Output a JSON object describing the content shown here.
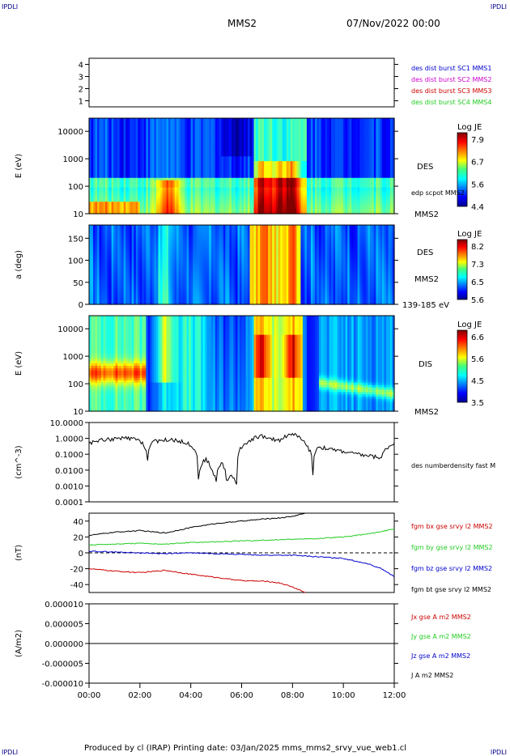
{
  "corner_label": "IPDLI",
  "header": {
    "spacecraft": "MMS2",
    "datetime": "07/Nov/2022 00:00"
  },
  "footer": "Produced by cl (IRAP)   Printing date: 03/Jan/2025   mms_mms2_srvy_vue_web1.cl",
  "colors": {
    "black": "#000000",
    "red": "#cc0000",
    "green": "#22cc22",
    "blue": "#0000cc",
    "magenta": "#cc00cc"
  },
  "chart_data": [
    {
      "type": "line",
      "panel": "burst availability",
      "ylim": [
        0.5,
        4.5
      ],
      "yticks": [
        "1",
        "2",
        "3",
        "4"
      ],
      "legend": [
        {
          "label": "des dist burst SC1 MMS1",
          "color": "#0000cc"
        },
        {
          "label": "des dist burst SC2 MMS2",
          "color": "#cc00cc"
        },
        {
          "label": "des dist burst SC3 MMS3",
          "color": "#cc0000"
        },
        {
          "label": "des dist burst SC4 MMS4",
          "color": "#22cc22"
        }
      ]
    },
    {
      "type": "heatmap",
      "panel": "DES energy spectrogram",
      "ylabel": "E (eV)",
      "yscale": "log",
      "ylim": [
        10,
        30000
      ],
      "yticks": [
        "10",
        "100",
        "1000",
        "10000"
      ],
      "labels": [
        "DES",
        "edp scpot MMS2",
        "MMS2"
      ],
      "colorbar": {
        "title": "Log JE",
        "ticks": [
          "7.9",
          "6.7",
          "5.6",
          "4.4"
        ],
        "range": [
          4.4,
          7.9
        ]
      }
    },
    {
      "type": "heatmap",
      "panel": "DES pitch angle",
      "ylabel": "a (deg)",
      "ylim": [
        0,
        180
      ],
      "yticks": [
        "0",
        "50",
        "100",
        "150"
      ],
      "labels": [
        "DES",
        "MMS2",
        "139-185 eV"
      ],
      "colorbar": {
        "title": "Log JE",
        "ticks": [
          "8.2",
          "7.3",
          "6.5",
          "5.6"
        ],
        "range": [
          5.6,
          8.2
        ]
      }
    },
    {
      "type": "heatmap",
      "panel": "DIS energy spectrogram",
      "ylabel": "E (eV)",
      "yscale": "log",
      "ylim": [
        10,
        30000
      ],
      "yticks": [
        "10",
        "100",
        "1000",
        "10000"
      ],
      "labels": [
        "DIS",
        "MMS2"
      ],
      "colorbar": {
        "title": "Log JE",
        "ticks": [
          "6.6",
          "5.6",
          "4.5",
          "3.5"
        ],
        "range": [
          3.5,
          6.6
        ]
      }
    },
    {
      "type": "line",
      "panel": "density",
      "ylabel": "(cm^-3)",
      "yscale": "log",
      "ylim": [
        0.0001,
        10
      ],
      "yticks": [
        "0.0001",
        "0.0010",
        "0.0100",
        "0.1000",
        "1.0000",
        "10.0000"
      ],
      "series": [
        {
          "name": "des numberdensity fast M",
          "color": "#000000",
          "x": [
            0,
            0.5,
            1,
            1.5,
            2,
            2.3,
            2.5,
            3,
            3.5,
            4,
            4.3,
            4.6,
            4.8,
            5,
            5.2,
            5.4,
            5.6,
            5.8,
            6.5,
            6.8,
            7,
            7.5,
            8,
            8.3,
            8.5,
            8.8,
            9,
            9.5,
            10,
            10.5,
            11,
            11.5,
            12
          ],
          "y": [
            0.5,
            0.8,
            0.9,
            1.0,
            0.7,
            0.05,
            0.6,
            0.8,
            0.7,
            0.4,
            0.003,
            0.05,
            0.01,
            0.002,
            0.03,
            0.002,
            0.005,
            0.001,
            1.0,
            1.5,
            0.9,
            0.8,
            2.0,
            1.0,
            0.4,
            0.005,
            0.3,
            0.2,
            0.15,
            0.1,
            0.08,
            0.06,
            0.5
          ]
        }
      ]
    },
    {
      "type": "line",
      "panel": "magnetic field",
      "ylabel": "(nT)",
      "ylim": [
        -50,
        50
      ],
      "yticks": [
        "-40",
        "-20",
        "0",
        "20",
        "40"
      ],
      "series": [
        {
          "name": "fgm bx gse srvy l2 MMS2",
          "color": "#cc0000",
          "x": [
            0,
            1,
            2,
            3,
            4,
            5,
            6,
            7,
            7.5,
            8,
            8.5
          ],
          "y": [
            -20,
            -23,
            -25,
            -22,
            -27,
            -31,
            -35,
            -36,
            -38,
            -43,
            -50
          ]
        },
        {
          "name": "fgm by gse srvy l2 MMS2",
          "color": "#22cc22",
          "x": [
            0,
            1,
            2,
            3,
            4,
            5,
            6,
            7,
            8,
            9,
            10,
            11,
            12
          ],
          "y": [
            10,
            11,
            12,
            11,
            13,
            14,
            15,
            16,
            17,
            18,
            20,
            24,
            30
          ]
        },
        {
          "name": "fgm bz gse srvy l2 MMS2",
          "color": "#0000cc",
          "x": [
            0,
            1,
            2,
            3,
            4,
            5,
            6,
            7,
            8,
            9,
            10,
            11,
            11.5,
            12
          ],
          "y": [
            2,
            1,
            0,
            -1,
            0,
            -1,
            -2,
            -3,
            -3,
            -5,
            -7,
            -14,
            -20,
            -30
          ]
        },
        {
          "name": "fgm bt gse srvy l2 MMS2",
          "color": "#000000",
          "x": [
            0,
            1,
            2,
            3,
            4,
            5,
            6,
            7,
            7.5,
            8,
            8.5
          ],
          "y": [
            22,
            26,
            28,
            25,
            32,
            37,
            40,
            43,
            44,
            46,
            50
          ]
        }
      ]
    },
    {
      "type": "line",
      "panel": "current density",
      "ylabel": "(A/m2)",
      "ylim": [
        -1e-05,
        1e-05
      ],
      "yticks": [
        "-0.000010",
        "-0.000005",
        "0.000000",
        "0.000005",
        "0.000010"
      ],
      "series": [
        {
          "name": "Jx gse A m2 MMS2",
          "color": "#cc0000",
          "x": [
            0,
            12
          ],
          "y": [
            0,
            0
          ]
        },
        {
          "name": "Jy gse A m2 MMS2",
          "color": "#22cc22",
          "x": [
            0,
            12
          ],
          "y": [
            0,
            0
          ]
        },
        {
          "name": "Jz gse A m2 MMS2",
          "color": "#0000cc",
          "x": [
            0,
            12
          ],
          "y": [
            0,
            0
          ]
        },
        {
          "name": "J A m2 MMS2",
          "color": "#000000",
          "x": [
            0,
            12
          ],
          "y": [
            0,
            0
          ]
        }
      ]
    }
  ],
  "xaxis": {
    "ticks": [
      "00:00",
      "02:00",
      "04:00",
      "06:00",
      "08:00",
      "10:00",
      "12:00"
    ],
    "range_hours": [
      0,
      12
    ]
  }
}
